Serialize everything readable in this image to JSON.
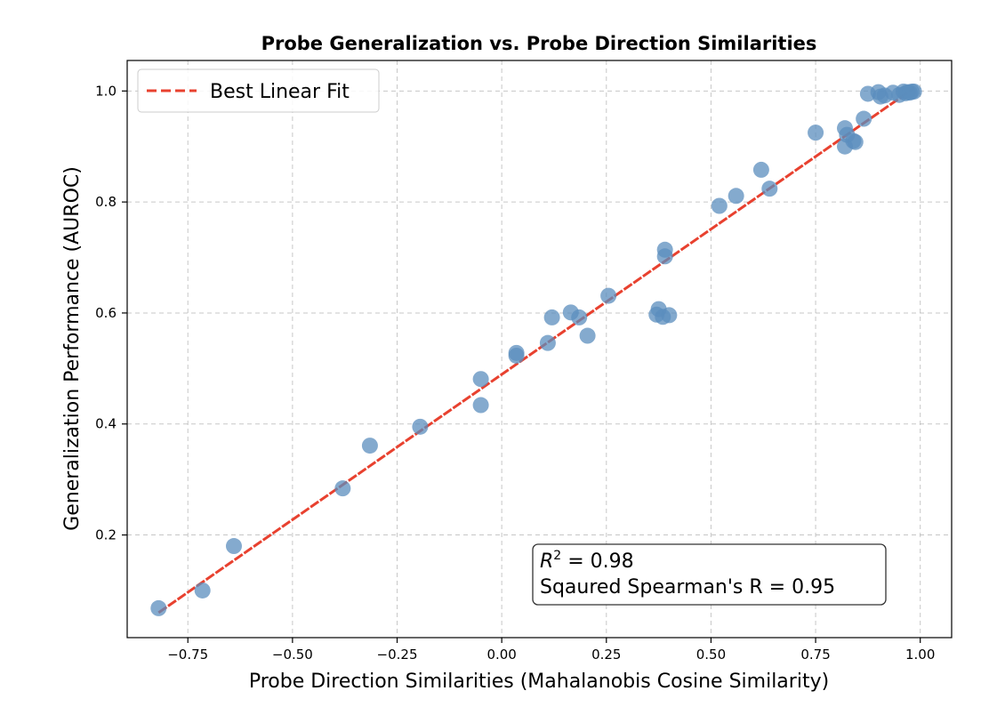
{
  "chart_data": {
    "type": "scatter",
    "title": "Probe Generalization vs. Probe Direction Similarities",
    "xlabel": "Probe Direction Similarities (Mahalanobis Cosine Similarity)",
    "ylabel": "Generalization Performance (AUROC)",
    "xlim": [
      -0.895,
      1.075
    ],
    "ylim": [
      0.015,
      1.055
    ],
    "xticks": [
      -0.75,
      -0.5,
      -0.25,
      0.0,
      0.25,
      0.5,
      0.75,
      1.0
    ],
    "xtick_labels": [
      "−0.75",
      "−0.50",
      "−0.25",
      "0.00",
      "0.25",
      "0.50",
      "0.75",
      "1.00"
    ],
    "yticks": [
      0.2,
      0.4,
      0.6,
      0.8,
      1.0
    ],
    "ytick_labels": [
      "0.2",
      "0.4",
      "0.6",
      "0.8",
      "1.0"
    ],
    "grid": true,
    "legend": {
      "position": "top-left",
      "entries": [
        {
          "label": "Best Linear Fit",
          "color": "#e8412f",
          "style": "dashed"
        }
      ]
    },
    "fit_line": {
      "x": [
        -0.82,
        0.985
      ],
      "y": [
        0.06,
        1.005
      ],
      "color": "#e8412f"
    },
    "annotation": {
      "line1_prefix": "R",
      "line1_sup": "2",
      "line1_rest": " = 0.98",
      "line2": "Sqaured Spearman's R = 0.95",
      "position": "bottom-right"
    },
    "point_color": "#5b8dbd",
    "points": {
      "x": [
        -0.82,
        -0.715,
        -0.64,
        -0.38,
        -0.315,
        -0.195,
        -0.05,
        -0.05,
        0.035,
        0.035,
        0.11,
        0.12,
        0.165,
        0.185,
        0.205,
        0.255,
        0.37,
        0.375,
        0.385,
        0.39,
        0.39,
        0.4,
        0.52,
        0.56,
        0.62,
        0.64,
        0.75,
        0.82,
        0.82,
        0.825,
        0.84,
        0.845,
        0.865,
        0.875,
        0.9,
        0.905,
        0.915,
        0.935,
        0.95,
        0.96,
        0.965,
        0.97,
        0.975,
        0.98,
        0.985
      ],
      "y": [
        0.068,
        0.1,
        0.18,
        0.284,
        0.361,
        0.395,
        0.434,
        0.481,
        0.523,
        0.528,
        0.546,
        0.592,
        0.601,
        0.592,
        0.559,
        0.631,
        0.597,
        0.607,
        0.593,
        0.702,
        0.714,
        0.596,
        0.793,
        0.811,
        0.858,
        0.824,
        0.925,
        0.933,
        0.9,
        0.921,
        0.91,
        0.908,
        0.95,
        0.995,
        0.998,
        0.99,
        0.992,
        0.997,
        0.993,
        0.999,
        0.996,
        0.998,
        0.997,
        0.999,
        0.999
      ]
    }
  }
}
